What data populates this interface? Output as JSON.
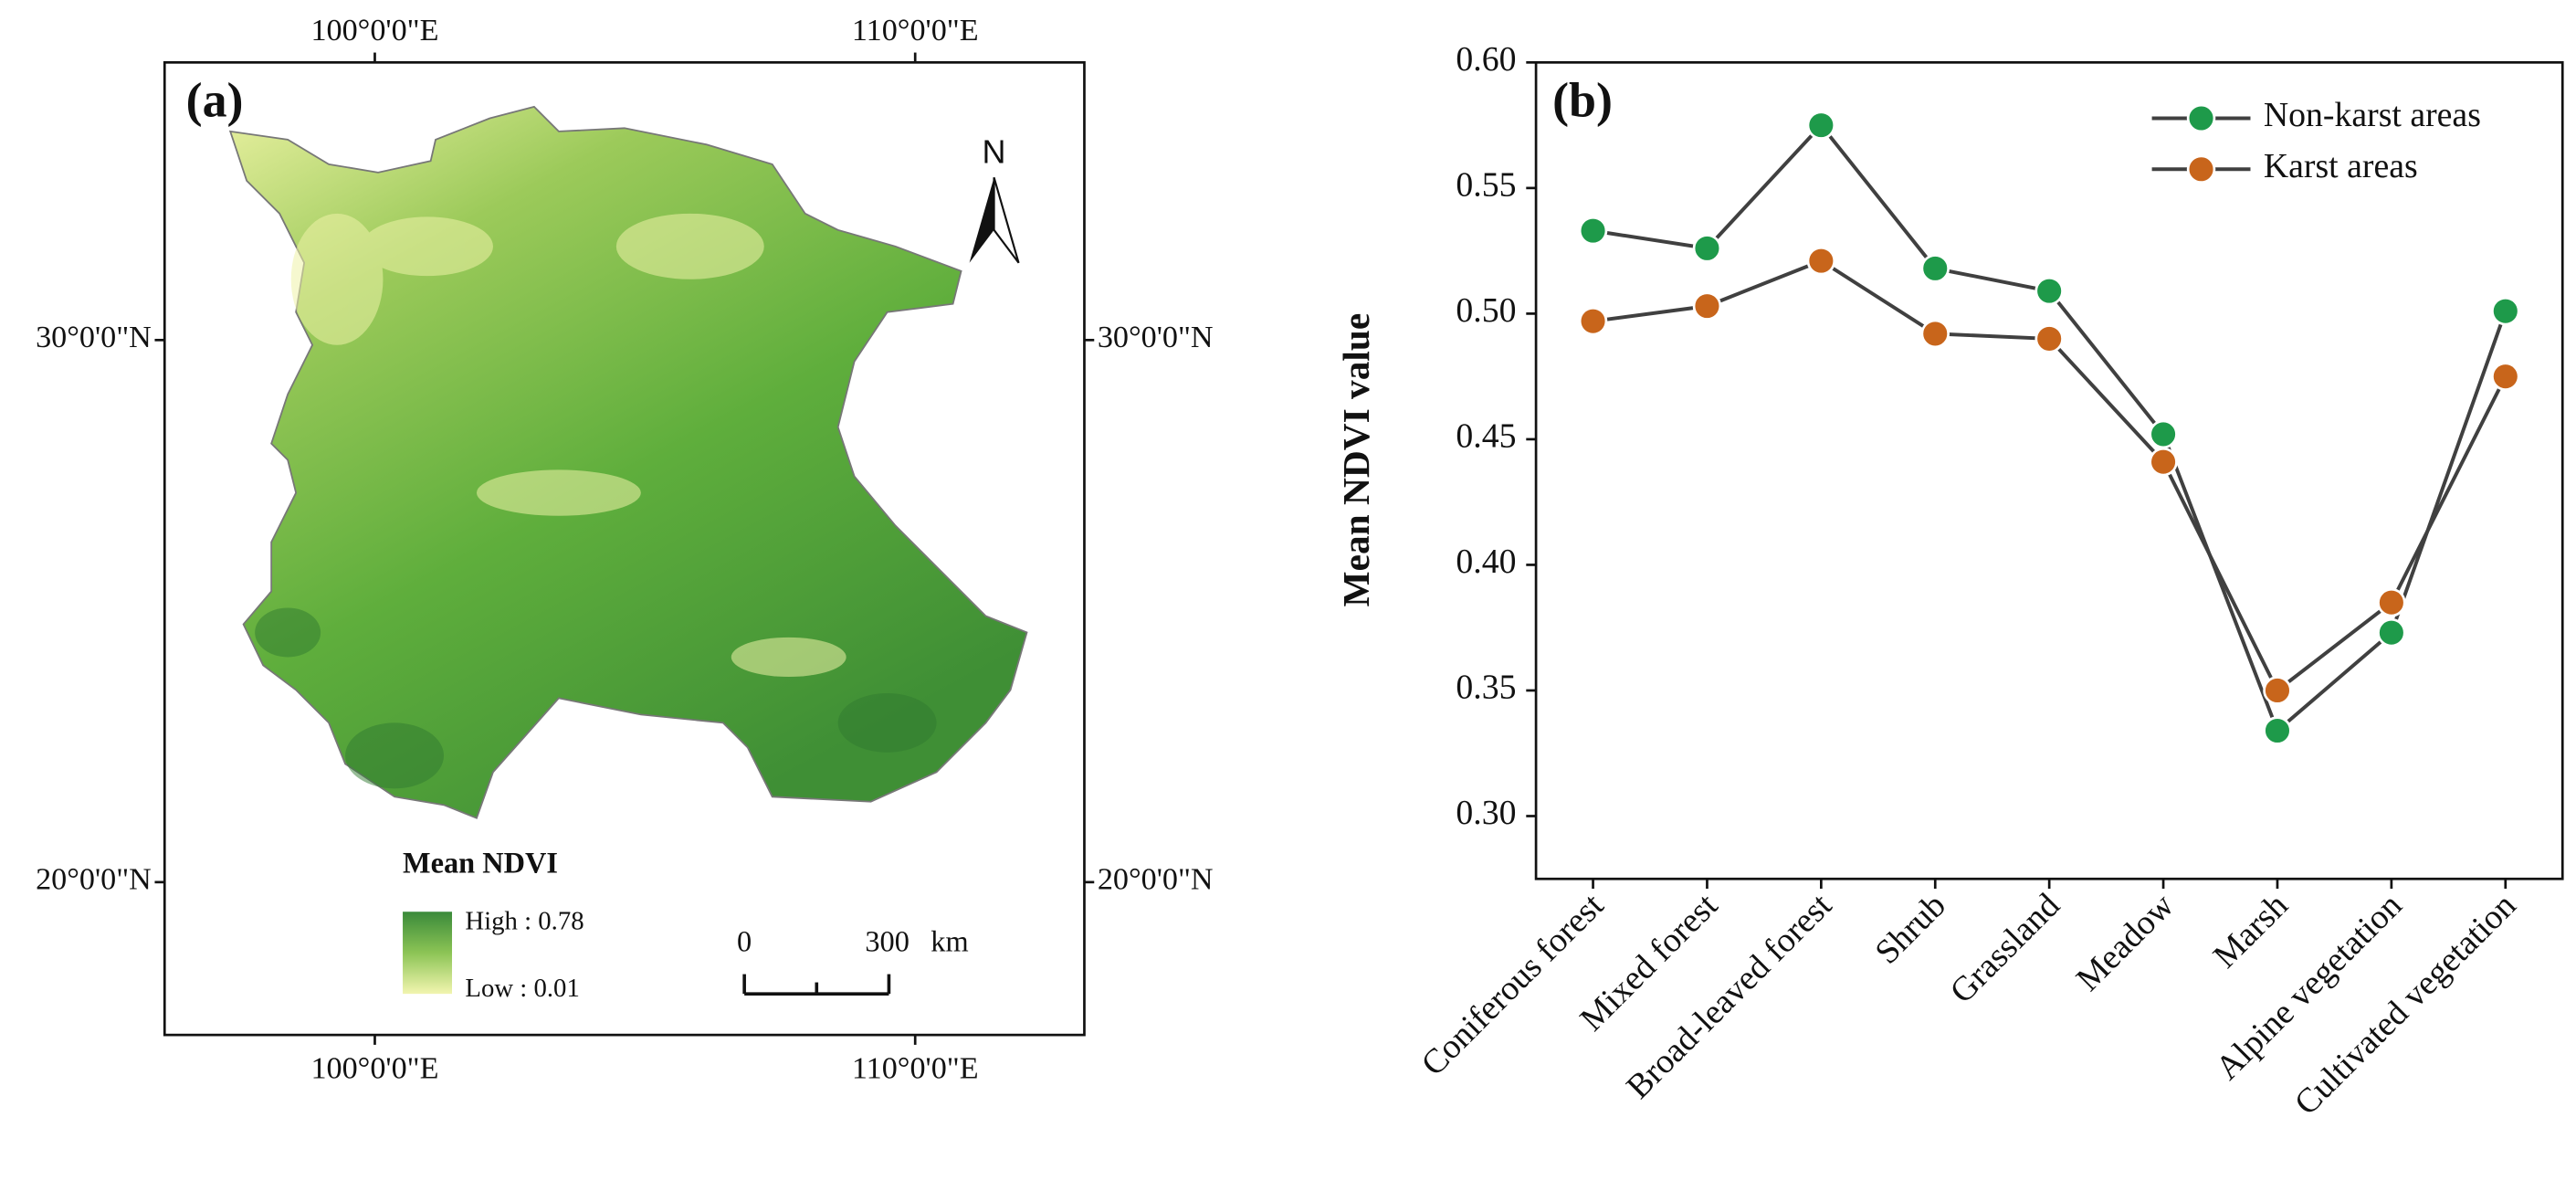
{
  "map": {
    "panel_label": "(a)",
    "lon_labels": [
      "100°0'0\"E",
      "110°0'0\"E"
    ],
    "lat_labels": [
      "30°0'0\"N",
      "20°0'0\"N"
    ],
    "north": "N",
    "legend": {
      "title": "Mean NDVI",
      "high": "High : 0.78",
      "low": "Low : 0.01"
    },
    "scale_bar": {
      "start": "0",
      "end": "300",
      "unit": "km"
    }
  },
  "chart_data": {
    "type": "line",
    "panel_label": "(b)",
    "y_label": "Mean NDVI value",
    "categories": [
      "Coniferous forest",
      "Mixed forest",
      "Broad-leaved forest",
      "Shrub",
      "Grassland",
      "Meadow",
      "Marsh",
      "Alpine vegetation",
      "Cultivated vegetation"
    ],
    "series": [
      {
        "name": "Non-karst areas",
        "color": "#1e9a4a",
        "values": [
          0.533,
          0.526,
          0.575,
          0.518,
          0.509,
          0.452,
          0.334,
          0.373,
          0.501
        ]
      },
      {
        "name": "Karst areas",
        "color": "#c8651b",
        "values": [
          0.497,
          0.503,
          0.521,
          0.492,
          0.49,
          0.441,
          0.35,
          0.385,
          0.475
        ]
      }
    ],
    "line_color": "#404040",
    "ylim": [
      0.275,
      0.6
    ],
    "yticks": [
      {
        "value": 0.3,
        "label": "0.30"
      },
      {
        "value": 0.35,
        "label": "0.35"
      },
      {
        "value": 0.4,
        "label": "0.40"
      },
      {
        "value": 0.45,
        "label": "0.45"
      },
      {
        "value": 0.5,
        "label": "0.50"
      },
      {
        "value": 0.55,
        "label": "0.55"
      },
      {
        "value": 0.6,
        "label": "0.60"
      }
    ],
    "grid": false,
    "legend": "upper right"
  }
}
